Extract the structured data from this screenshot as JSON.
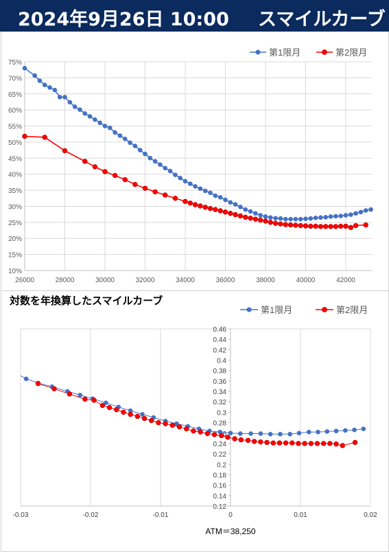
{
  "header": {
    "date": "2024年9月26日 10:00",
    "title": "スマイルカーブ"
  },
  "colors": {
    "series1": "#4472c4",
    "series2": "#ff0000",
    "header_bg": "#0b2a5e"
  },
  "chart_data": [
    {
      "type": "line",
      "title": "",
      "xlabel": "",
      "ylabel": "",
      "xlim": [
        26000,
        43300
      ],
      "ylim": [
        10,
        75
      ],
      "grid": true,
      "legend": "top-right",
      "xticks": [
        "26000",
        "28000",
        "30000",
        "32000",
        "34000",
        "36000",
        "38000",
        "40000",
        "42000"
      ],
      "yticks": [
        "10%",
        "15%",
        "20%",
        "25%",
        "30%",
        "35%",
        "40%",
        "45%",
        "50%",
        "55%",
        "60%",
        "65%",
        "70%",
        "75%"
      ],
      "series": [
        {
          "name": "第1限月",
          "x": [
            26000,
            26500,
            26750,
            27000,
            27250,
            27500,
            27750,
            28000,
            28250,
            28500,
            28750,
            29000,
            29250,
            29500,
            29750,
            30000,
            30250,
            30500,
            30750,
            31000,
            31250,
            31500,
            31750,
            32000,
            32250,
            32500,
            32750,
            33000,
            33250,
            33500,
            33750,
            34000,
            34250,
            34500,
            34750,
            35000,
            35250,
            35500,
            35750,
            36000,
            36250,
            36500,
            36750,
            37000,
            37250,
            37500,
            37750,
            38000,
            38250,
            38500,
            38750,
            39000,
            39250,
            39500,
            39750,
            40000,
            40250,
            40500,
            40750,
            41000,
            41250,
            41500,
            41750,
            42000,
            42250,
            42500,
            42750,
            43000,
            43250
          ],
          "y": [
            73,
            70.7,
            69.1,
            67.8,
            67.0,
            66.2,
            64.0,
            64.0,
            62.4,
            61.0,
            60.1,
            58.9,
            58.0,
            57.0,
            56.0,
            55.0,
            54.4,
            53.0,
            52.0,
            51.0,
            49.8,
            48.8,
            47.5,
            46.3,
            45.0,
            44.0,
            43.0,
            41.9,
            41.0,
            39.8,
            38.8,
            37.8,
            37.0,
            36.2,
            35.5,
            34.8,
            34.2,
            33.3,
            32.8,
            32.0,
            31.2,
            30.6,
            29.8,
            29.0,
            28.4,
            27.8,
            27.2,
            26.8,
            26.5,
            26.3,
            26.2,
            26.0,
            26.0,
            26.0,
            26.0,
            26.1,
            26.2,
            26.4,
            26.5,
            26.6,
            26.8,
            26.9,
            27.0,
            27.2,
            27.4,
            27.8,
            28.2,
            28.7,
            29.0
          ]
        },
        {
          "name": "第2限月",
          "x": [
            26000,
            27000,
            28000,
            29000,
            29500,
            30000,
            30500,
            31000,
            31500,
            32000,
            32500,
            33000,
            33500,
            34000,
            34250,
            34500,
            34750,
            35000,
            35250,
            35500,
            35750,
            36000,
            36250,
            36500,
            36750,
            37000,
            37250,
            37500,
            37750,
            38000,
            38250,
            38500,
            38750,
            39000,
            39250,
            39500,
            39750,
            40000,
            40250,
            40500,
            40750,
            41000,
            41250,
            41500,
            41750,
            42000,
            42250,
            42500,
            43000
          ],
          "y": [
            51.8,
            51.5,
            47.3,
            44.0,
            42.3,
            40.8,
            39.6,
            38.3,
            36.8,
            35.6,
            34.5,
            33.5,
            32.5,
            31.5,
            31.0,
            30.5,
            30.1,
            29.7,
            29.3,
            29.0,
            28.6,
            28.2,
            27.8,
            27.4,
            27.0,
            26.6,
            26.3,
            26.0,
            25.7,
            25.4,
            25.0,
            24.7,
            24.5,
            24.3,
            24.2,
            24.1,
            24.0,
            23.9,
            23.8,
            23.8,
            23.7,
            23.7,
            23.7,
            23.7,
            23.8,
            23.8,
            23.4,
            24.0,
            24.2
          ]
        }
      ]
    },
    {
      "type": "scatter",
      "title": "対数を年換算したスマイルカーブ",
      "xlabel": "ATM＝38,250",
      "ylabel": "",
      "xlim": [
        -0.03,
        0.02
      ],
      "ylim": [
        0.12,
        0.46
      ],
      "grid": true,
      "legend": "top-right",
      "xticks": [
        "-0.03",
        "-0.02",
        "-0.01",
        "0",
        "0.01",
        "0.02"
      ],
      "yticks": [
        "0.12",
        "0.14",
        "0.16",
        "0.18",
        "0.2",
        "0.22",
        "0.24",
        "0.26",
        "0.28",
        "0.3",
        "0.32",
        "0.34",
        "0.36",
        "0.38",
        "0.4",
        "0.42",
        "0.44",
        "0.46"
      ],
      "series": [
        {
          "name": "第1限月",
          "x": [
            -0.0292,
            -0.0275,
            -0.0255,
            -0.0233,
            -0.0215,
            -0.0197,
            -0.0178,
            -0.016,
            -0.0143,
            -0.0126,
            -0.011,
            -0.0093,
            -0.0077,
            -0.0061,
            -0.0045,
            -0.003,
            -0.0015,
            0,
            0.0014,
            0.0029,
            0.0043,
            0.0057,
            0.0071,
            0.0085,
            0.0098,
            0.0112,
            0.0125,
            0.0138,
            0.0151,
            0.0164,
            0.0177,
            0.019
          ],
          "y": [
            0.364,
            0.356,
            0.349,
            0.34,
            0.333,
            0.326,
            0.318,
            0.31,
            0.303,
            0.296,
            0.29,
            0.283,
            0.278,
            0.273,
            0.268,
            0.264,
            0.262,
            0.26,
            0.259,
            0.259,
            0.259,
            0.258,
            0.258,
            0.258,
            0.26,
            0.262,
            0.262,
            0.263,
            0.264,
            0.265,
            0.266,
            0.268
          ]
        },
        {
          "name": "第2限月",
          "x": [
            -0.0275,
            -0.0252,
            -0.023,
            -0.0208,
            -0.0195,
            -0.0183,
            -0.0173,
            -0.0163,
            -0.0153,
            -0.0143,
            -0.0133,
            -0.0123,
            -0.0113,
            -0.0103,
            -0.0093,
            -0.0083,
            -0.0073,
            -0.0063,
            -0.0053,
            -0.0043,
            -0.0033,
            -0.0023,
            -0.0013,
            -0.0004,
            0.0006,
            0.0015,
            0.0025,
            0.0034,
            0.0043,
            0.0052,
            0.0061,
            0.007,
            0.0079,
            0.0088,
            0.0097,
            0.0106,
            0.0115,
            0.0124,
            0.0133,
            0.0142,
            0.0151,
            0.016,
            0.0178
          ],
          "y": [
            0.355,
            0.345,
            0.335,
            0.325,
            0.323,
            0.313,
            0.309,
            0.305,
            0.3,
            0.296,
            0.292,
            0.288,
            0.284,
            0.28,
            0.278,
            0.275,
            0.272,
            0.268,
            0.264,
            0.262,
            0.259,
            0.257,
            0.255,
            0.252,
            0.249,
            0.247,
            0.246,
            0.244,
            0.243,
            0.242,
            0.241,
            0.241,
            0.241,
            0.241,
            0.24,
            0.24,
            0.24,
            0.24,
            0.24,
            0.24,
            0.239,
            0.236,
            0.242
          ]
        }
      ]
    }
  ]
}
